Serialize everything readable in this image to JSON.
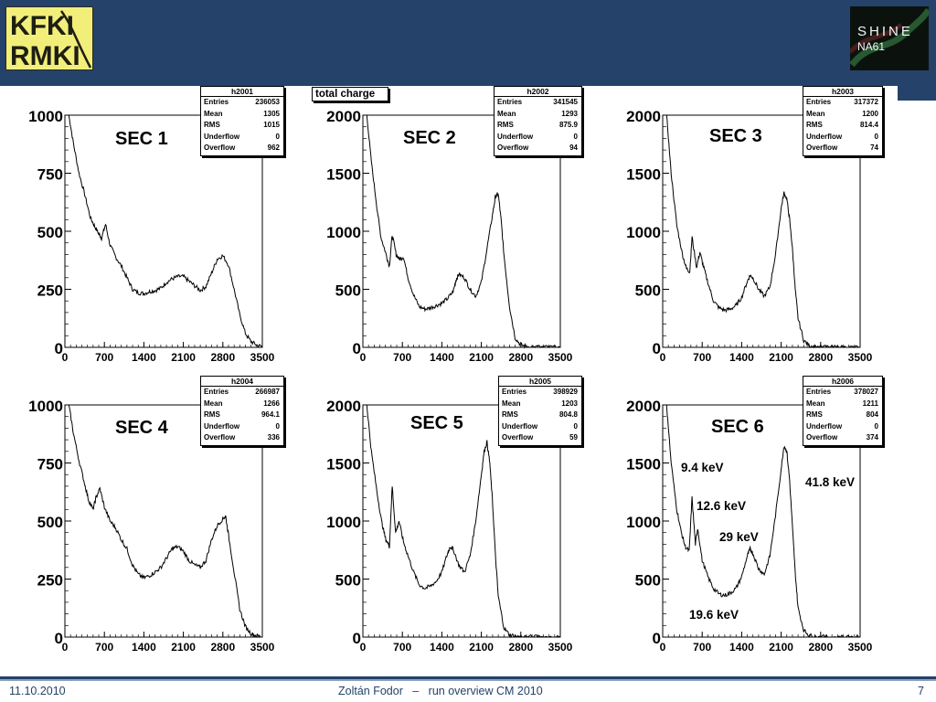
{
  "header": {
    "logo_left": {
      "line1": "KFKI",
      "line2": "RMKI",
      "icon": "kfki-rmki-logo-icon"
    },
    "logo_right": {
      "line1": "SHINE",
      "line2": "NA61",
      "icon": "shine-na61-logo-icon"
    },
    "colors": {
      "background": "#24426a",
      "logo_left_bg": "#f2ee7a"
    }
  },
  "canvas_label": "total charge",
  "stat_labels": [
    "Entries",
    "Mean",
    "RMS",
    "Underflow",
    "Overflow"
  ],
  "panels": [
    {
      "title": "SEC 1",
      "stats": {
        "name": "h2001",
        "entries": "236053",
        "mean": "1305",
        "rms": "1015",
        "underflow": "0",
        "overflow": "962"
      }
    },
    {
      "title": "SEC 2",
      "stats": {
        "name": "h2002",
        "entries": "341545",
        "mean": "1293",
        "rms": "875.9",
        "underflow": "0",
        "overflow": "94"
      }
    },
    {
      "title": "SEC 3",
      "stats": {
        "name": "h2003",
        "entries": "317372",
        "mean": "1200",
        "rms": "814.4",
        "underflow": "0",
        "overflow": "74"
      }
    },
    {
      "title": "SEC 4",
      "stats": {
        "name": "h2004",
        "entries": "266987",
        "mean": "1266",
        "rms": "964.1",
        "underflow": "0",
        "overflow": "336"
      }
    },
    {
      "title": "SEC 5",
      "stats": {
        "name": "h2005",
        "entries": "398929",
        "mean": "1203",
        "rms": "804.8",
        "underflow": "0",
        "overflow": "59"
      }
    },
    {
      "title": "SEC 6",
      "stats": {
        "name": "h2006",
        "entries": "378027",
        "mean": "1211",
        "rms": "804",
        "underflow": "0",
        "overflow": "374"
      }
    }
  ],
  "annotations": [
    "9.4 keV",
    "12.6 keV",
    "41.8 keV",
    "29 keV",
    "19.6 keV"
  ],
  "chart_data": [
    {
      "type": "line",
      "title": "SEC 1",
      "xlabel": "",
      "ylabel": "",
      "xlim": [
        0,
        3500
      ],
      "ylim": [
        0,
        1000
      ],
      "xticks": [
        "0",
        "700",
        "1400",
        "2100",
        "2800",
        "3500"
      ],
      "yticks": [
        "0",
        "250",
        "500",
        "750",
        "1000"
      ],
      "x": [
        70,
        150,
        250,
        350,
        450,
        530,
        600,
        650,
        720,
        800,
        900,
        1000,
        1100,
        1200,
        1300,
        1400,
        1500,
        1600,
        1700,
        1800,
        1900,
        2000,
        2100,
        2200,
        2300,
        2400,
        2500,
        2600,
        2700,
        2800,
        2900,
        3000,
        3100,
        3200,
        3300,
        3400,
        3500
      ],
      "y": [
        1000,
        880,
        750,
        660,
        560,
        520,
        490,
        470,
        530,
        440,
        390,
        350,
        300,
        250,
        235,
        232,
        240,
        245,
        255,
        280,
        295,
        305,
        305,
        285,
        265,
        245,
        262,
        320,
        380,
        395,
        355,
        250,
        140,
        60,
        25,
        10,
        3
      ]
    },
    {
      "type": "line",
      "title": "SEC 2",
      "xlabel": "",
      "ylabel": "",
      "xlim": [
        0,
        3500
      ],
      "ylim": [
        0,
        2000
      ],
      "xticks": [
        "0",
        "700",
        "1400",
        "2100",
        "2800",
        "3500"
      ],
      "yticks": [
        "0",
        "500",
        "1000",
        "1500",
        "2000"
      ],
      "x": [
        70,
        150,
        250,
        320,
        400,
        470,
        520,
        590,
        650,
        720,
        800,
        900,
        1000,
        1100,
        1200,
        1300,
        1400,
        1500,
        1600,
        1650,
        1700,
        1800,
        1900,
        2000,
        2100,
        2200,
        2300,
        2350,
        2400,
        2450,
        2500,
        2600,
        2700,
        2800,
        2900,
        3100,
        3300,
        3500
      ],
      "y": [
        2000,
        1600,
        1200,
        950,
        820,
        700,
        970,
        800,
        760,
        780,
        600,
        450,
        350,
        330,
        340,
        360,
        380,
        420,
        480,
        580,
        630,
        600,
        500,
        440,
        560,
        850,
        1150,
        1300,
        1320,
        1100,
        800,
        350,
        80,
        20,
        8,
        3,
        2,
        1
      ]
    },
    {
      "type": "line",
      "title": "SEC 3",
      "xlabel": "",
      "ylabel": "",
      "xlim": [
        0,
        3500
      ],
      "ylim": [
        0,
        2000
      ],
      "xticks": [
        "0",
        "700",
        "1400",
        "2100",
        "2800",
        "3500"
      ],
      "yticks": [
        "0",
        "500",
        "1000",
        "1500",
        "2000"
      ],
      "x": [
        70,
        150,
        250,
        350,
        420,
        480,
        520,
        600,
        660,
        720,
        800,
        900,
        1000,
        1100,
        1200,
        1300,
        1400,
        1500,
        1550,
        1600,
        1700,
        1800,
        1900,
        2000,
        2100,
        2150,
        2200,
        2250,
        2300,
        2350,
        2400,
        2500,
        2600,
        2700,
        2900,
        3100,
        3300,
        3500
      ],
      "y": [
        2000,
        1500,
        1050,
        800,
        680,
        650,
        950,
        690,
        820,
        700,
        560,
        400,
        340,
        320,
        330,
        360,
        430,
        570,
        620,
        600,
        500,
        440,
        520,
        800,
        1200,
        1330,
        1280,
        1100,
        850,
        500,
        250,
        60,
        15,
        5,
        2,
        1,
        1,
        0
      ]
    },
    {
      "type": "line",
      "title": "SEC 4",
      "xlabel": "",
      "ylabel": "",
      "xlim": [
        0,
        3500
      ],
      "ylim": [
        0,
        1000
      ],
      "xticks": [
        "0",
        "700",
        "1400",
        "2100",
        "2800",
        "3500"
      ],
      "yticks": [
        "0",
        "250",
        "500",
        "750",
        "1000"
      ],
      "x": [
        70,
        150,
        250,
        350,
        420,
        500,
        550,
        620,
        700,
        800,
        900,
        1000,
        1100,
        1200,
        1300,
        1400,
        1500,
        1600,
        1700,
        1800,
        1900,
        2000,
        2100,
        2200,
        2300,
        2400,
        2500,
        2600,
        2700,
        2800,
        2850,
        2900,
        3000,
        3100,
        3200,
        3300,
        3400,
        3500
      ],
      "y": [
        1000,
        880,
        760,
        660,
        590,
        550,
        600,
        640,
        560,
        500,
        470,
        420,
        380,
        310,
        270,
        255,
        265,
        280,
        300,
        340,
        380,
        390,
        370,
        330,
        310,
        300,
        330,
        420,
        480,
        510,
        520,
        440,
        280,
        120,
        45,
        15,
        5,
        2
      ]
    },
    {
      "type": "line",
      "title": "SEC 5",
      "xlabel": "",
      "ylabel": "",
      "xlim": [
        0,
        3500
      ],
      "ylim": [
        0,
        2000
      ],
      "xticks": [
        "0",
        "700",
        "1400",
        "2100",
        "2800",
        "3500"
      ],
      "yticks": [
        "0",
        "500",
        "1000",
        "1500",
        "2000"
      ],
      "x": [
        70,
        150,
        250,
        330,
        400,
        470,
        520,
        580,
        640,
        720,
        800,
        900,
        1000,
        1100,
        1200,
        1300,
        1400,
        1500,
        1550,
        1600,
        1700,
        1800,
        1900,
        2000,
        2100,
        2150,
        2200,
        2250,
        2300,
        2350,
        2400,
        2500,
        2600,
        2700,
        2900,
        3100,
        3300,
        3500
      ],
      "y": [
        2000,
        1600,
        1250,
        1000,
        850,
        780,
        1300,
        900,
        1000,
        820,
        700,
        560,
        450,
        420,
        440,
        480,
        560,
        720,
        780,
        760,
        620,
        560,
        700,
        1000,
        1400,
        1600,
        1680,
        1500,
        1150,
        700,
        350,
        80,
        20,
        8,
        3,
        2,
        1,
        0
      ]
    },
    {
      "type": "line",
      "title": "SEC 6",
      "xlabel": "",
      "ylabel": "",
      "xlim": [
        0,
        3500
      ],
      "ylim": [
        0,
        2000
      ],
      "xticks": [
        "0",
        "700",
        "1400",
        "2100",
        "2800",
        "3500"
      ],
      "yticks": [
        "0",
        "500",
        "1000",
        "1500",
        "2000"
      ],
      "x": [
        70,
        150,
        250,
        330,
        400,
        470,
        520,
        580,
        620,
        700,
        800,
        900,
        1000,
        1100,
        1200,
        1300,
        1400,
        1500,
        1550,
        1600,
        1700,
        1800,
        1900,
        2000,
        2100,
        2150,
        2200,
        2250,
        2300,
        2350,
        2400,
        2500,
        2600,
        2700,
        2900,
        3100,
        3300,
        3500
      ],
      "y": [
        2000,
        1500,
        1100,
        900,
        780,
        740,
        1200,
        800,
        940,
        660,
        520,
        420,
        370,
        360,
        380,
        420,
        520,
        700,
        760,
        720,
        590,
        540,
        700,
        1050,
        1450,
        1650,
        1600,
        1350,
        950,
        550,
        250,
        60,
        15,
        5,
        2,
        1,
        1,
        0
      ]
    }
  ],
  "footer": {
    "date": "11.10.2010",
    "center": "Zoltán Fodor   –   run overview CM 2010",
    "page": "7"
  }
}
